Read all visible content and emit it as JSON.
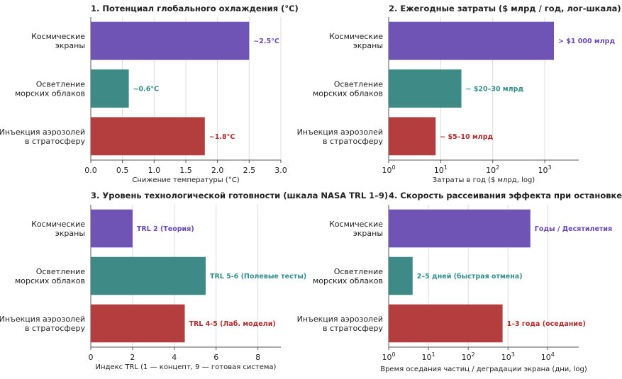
{
  "panels": [
    {
      "title": "1. Потенциал глобального охлаждения (°C)",
      "xlabel": "Снижение температуры (°C)"
    },
    {
      "title": "2. Ежегодные затраты ($ млрд / год, лог-шкала)",
      "xlabel": "Затраты в год ($ млрд, log)"
    },
    {
      "title": "3. Уровень технологической готовности (шкала NASA TRL 1–9)",
      "xlabel": "Индекс TRL (1 — концепт, 9 — готовая система)"
    },
    {
      "title": "4. Скорость рассеивания эффекта при остановке",
      "xlabel": "Время оседания частиц / деградации экрана (дни, log)"
    }
  ],
  "chart_data": [
    {
      "type": "bar",
      "orientation": "horizontal",
      "title": "1. Потенциал глобального охлаждения (°C)",
      "xlabel": "Снижение температуры (°C)",
      "xscale": "linear",
      "xlim": [
        0,
        3.0
      ],
      "xticks": [
        {
          "value": 0,
          "label": "0.0"
        },
        {
          "value": 0.5,
          "label": "0.5"
        },
        {
          "value": 1.0,
          "label": "1.0"
        },
        {
          "value": 1.5,
          "label": "1.5"
        },
        {
          "value": 2.0,
          "label": "2.0"
        },
        {
          "value": 2.5,
          "label": "2.5"
        },
        {
          "value": 3.0,
          "label": "3.0"
        }
      ],
      "categories": [
        [
          "Космические",
          "экраны"
        ],
        [
          "Осветление",
          "морских облаков"
        ],
        [
          "Инъекция аэрозолей",
          "в стратосферу"
        ]
      ],
      "values": [
        2.5,
        0.6,
        1.8
      ],
      "bar_labels": [
        "~2.5°C",
        "~0.6°C",
        "~1.8°C"
      ],
      "colors": [
        "#7054b5",
        "#3e8a86",
        "#b43d3e"
      ],
      "label_colors": [
        "#6a47b8",
        "#2e8e8a",
        "#b22a2a"
      ],
      "grid": "vertical"
    },
    {
      "type": "bar",
      "orientation": "horizontal",
      "title": "2. Ежегодные затраты ($ млрд / год, лог-шкала)",
      "xlabel": "Затраты в год ($ млрд, log)",
      "xscale": "log",
      "xlim": [
        1,
        4500
      ],
      "xticks": [
        {
          "value": 1,
          "base": "10",
          "exp": "0"
        },
        {
          "value": 10,
          "base": "10",
          "exp": "1"
        },
        {
          "value": 100,
          "base": "10",
          "exp": "2"
        },
        {
          "value": 1000,
          "base": "10",
          "exp": "3"
        }
      ],
      "categories": [
        [
          "Космические",
          "экраны"
        ],
        [
          "Осветление",
          "морских облаков"
        ],
        [
          "Инъекция аэрозолей",
          "в стратосферу"
        ]
      ],
      "values": [
        1500,
        25,
        8
      ],
      "bar_labels": [
        "> $1 000 млрд",
        "~ $20–30 млрд",
        "~ $5–10 млрд"
      ],
      "colors": [
        "#7054b5",
        "#3e8a86",
        "#b43d3e"
      ],
      "label_colors": [
        "#6a47b8",
        "#2e8e8a",
        "#b22a2a"
      ],
      "grid": "vertical"
    },
    {
      "type": "bar",
      "orientation": "horizontal",
      "title": "3. Уровень технологической готовности (шкала NASA TRL 1–9)",
      "xlabel": "Индекс TRL (1 — концепт, 9 — готовая система)",
      "xscale": "linear",
      "xlim": [
        0,
        9.1
      ],
      "xticks": [
        {
          "value": 0,
          "label": "0"
        },
        {
          "value": 2,
          "label": "2"
        },
        {
          "value": 4,
          "label": "4"
        },
        {
          "value": 6,
          "label": "6"
        },
        {
          "value": 8,
          "label": "8"
        }
      ],
      "categories": [
        [
          "Космические",
          "экраны"
        ],
        [
          "Осветление",
          "морских облаков"
        ],
        [
          "Инъекция аэрозолей",
          "в стратосферу"
        ]
      ],
      "values": [
        2,
        5.5,
        4.5
      ],
      "bar_labels": [
        "TRL 2 (Теория)",
        "TRL 5-6 (Полевые тесты)",
        "TRL 4-5 (Лаб. модели)"
      ],
      "colors": [
        "#7054b5",
        "#3e8a86",
        "#b43d3e"
      ],
      "label_colors": [
        "#6a47b8",
        "#2e8e8a",
        "#b22a2a"
      ],
      "grid": "vertical"
    },
    {
      "type": "bar",
      "orientation": "horizontal",
      "title": "4. Скорость рассеивания эффекта при остановке",
      "xlabel": "Время оседания частиц / деградации экрана (дни, log)",
      "xscale": "log",
      "xlim": [
        1,
        60000
      ],
      "xticks": [
        {
          "value": 1,
          "base": "10",
          "exp": "0"
        },
        {
          "value": 10,
          "base": "10",
          "exp": "1"
        },
        {
          "value": 100,
          "base": "10",
          "exp": "2"
        },
        {
          "value": 1000,
          "base": "10",
          "exp": "3"
        },
        {
          "value": 10000,
          "base": "10",
          "exp": "4"
        }
      ],
      "categories": [
        [
          "Космические",
          "экраны"
        ],
        [
          "Осветление",
          "морских облаков"
        ],
        [
          "Инъекция аэрозолей",
          "в стратосферу"
        ]
      ],
      "values": [
        3650,
        4,
        730
      ],
      "bar_labels": [
        "Годы / Десятилетия",
        "2–5 дней (быстрая отмена)",
        "1–3 года (оседание)"
      ],
      "colors": [
        "#7054b5",
        "#3e8a86",
        "#b43d3e"
      ],
      "label_colors": [
        "#6a47b8",
        "#2e8e8a",
        "#b22a2a"
      ],
      "grid": "vertical"
    }
  ]
}
